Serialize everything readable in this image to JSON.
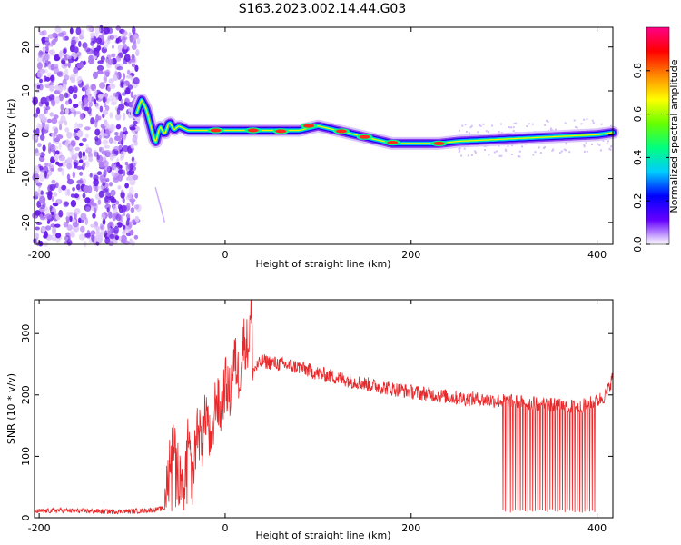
{
  "title": "S163.2023.002.14.44.G03",
  "chart_data": [
    {
      "type": "heatmap",
      "xlabel": "Height of straight line (km)",
      "ylabel": "Frequency (Hz)",
      "xlim": [
        -205,
        417
      ],
      "ylim": [
        -25,
        24.5
      ],
      "x_ticks": [
        -200,
        0,
        200,
        400
      ],
      "y_ticks": [
        -20,
        -10,
        0,
        10,
        20
      ],
      "grid": false,
      "colorbar": {
        "label": "Normalized spectral amplitude",
        "range": [
          0,
          1
        ],
        "ticks": [
          0.0,
          0.2,
          0.4,
          0.6,
          0.8
        ],
        "colors": [
          "#ffffff",
          "#6600ff",
          "#0000ff",
          "#00ccff",
          "#00ff80",
          "#66ff00",
          "#ffff00",
          "#ff8800",
          "#ff0000",
          "#ff0088"
        ]
      },
      "noise_region_x": [
        -205,
        -95
      ],
      "ridge": {
        "x": [
          -95,
          -90,
          -85,
          -80,
          -75,
          -70,
          -65,
          -60,
          -55,
          -50,
          -40,
          -20,
          0,
          20,
          50,
          80,
          100,
          120,
          140,
          160,
          180,
          200,
          230,
          250,
          300,
          350,
          400,
          417
        ],
        "freq": [
          5,
          8,
          6,
          2,
          -2,
          2,
          0,
          3,
          1,
          2,
          1,
          1,
          1,
          1,
          1,
          1,
          2,
          1,
          0,
          -1,
          -2,
          -2,
          -2,
          -1.5,
          -1,
          -0.5,
          0,
          0.5
        ]
      },
      "strong_spots": [
        {
          "x": -10,
          "freq": 1
        },
        {
          "x": 30,
          "freq": 1
        },
        {
          "x": 60,
          "freq": 0.8
        },
        {
          "x": 90,
          "freq": 2
        },
        {
          "x": 125,
          "freq": 0.8
        },
        {
          "x": 150,
          "freq": -0.5
        },
        {
          "x": 180,
          "freq": -1.8
        },
        {
          "x": 230,
          "freq": -2
        }
      ]
    },
    {
      "type": "line",
      "xlabel": "Height of straight line (km)",
      "ylabel": "SNR (10 * v/v)",
      "xlim": [
        -205,
        417
      ],
      "ylim": [
        0,
        355
      ],
      "x_ticks": [
        -200,
        0,
        200,
        400
      ],
      "y_ticks": [
        0,
        100,
        200,
        300
      ],
      "grid": false,
      "series": [
        {
          "color": "#e8282a",
          "x": [
            -205,
            -180,
            -150,
            -120,
            -90,
            -65,
            -60,
            -55,
            -50,
            -45,
            -40,
            -35,
            -30,
            -25,
            -20,
            -15,
            -10,
            -5,
            0,
            5,
            10,
            15,
            20,
            25,
            28,
            30,
            40,
            60,
            80,
            100,
            130,
            160,
            200,
            250,
            300,
            340,
            380,
            400,
            410,
            417
          ],
          "y": [
            10,
            12,
            11,
            10,
            11,
            15,
            100,
            140,
            70,
            30,
            120,
            60,
            150,
            120,
            180,
            100,
            200,
            170,
            220,
            200,
            260,
            230,
            290,
            280,
            340,
            240,
            255,
            250,
            245,
            235,
            225,
            215,
            205,
            195,
            190,
            185,
            180,
            190,
            200,
            230
          ],
          "sawtooth_region": [
            298,
            400
          ],
          "sawtooth_low": 8
        }
      ]
    }
  ]
}
